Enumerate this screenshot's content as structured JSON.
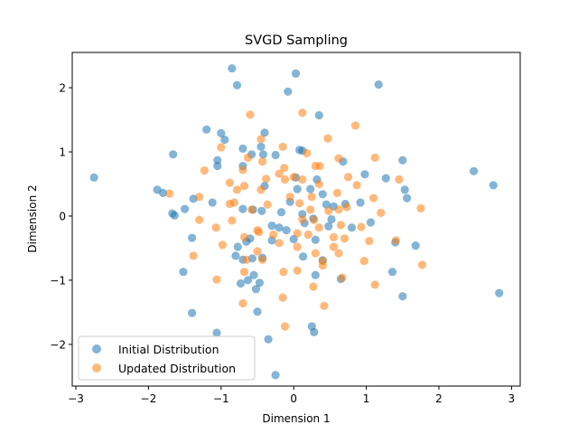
{
  "chart_data": {
    "type": "scatter",
    "title": "SVGD Sampling",
    "xlabel": "Dimension 1",
    "ylabel": "Dimension 2",
    "xlim": [
      -3.05,
      3.12
    ],
    "ylim": [
      -2.65,
      2.55
    ],
    "xticks": [
      -3,
      -2,
      -1,
      0,
      1,
      2,
      3
    ],
    "yticks": [
      -2,
      -1,
      0,
      1,
      2
    ],
    "xtick_labels": [
      "−3",
      "−2",
      "−1",
      "0",
      "1",
      "2",
      "3"
    ],
    "ytick_labels": [
      "−2",
      "−1",
      "0",
      "1",
      "2"
    ],
    "legend_position": "lower-left",
    "grid": false,
    "series": [
      {
        "name": "Initial Distribution",
        "color": "#1f77b4",
        "points": [
          [
            -0.85,
            2.3
          ],
          [
            -0.78,
            2.04
          ],
          [
            0.03,
            2.22
          ],
          [
            1.17,
            2.05
          ],
          [
            -0.08,
            1.94
          ],
          [
            -1.2,
            1.35
          ],
          [
            -1.0,
            1.29
          ],
          [
            -0.4,
            1.3
          ],
          [
            0.35,
            1.57
          ],
          [
            -0.95,
            1.19
          ],
          [
            -0.7,
            1.05
          ],
          [
            -0.45,
            1.08
          ],
          [
            0.08,
            1.03
          ],
          [
            0.12,
            1.02
          ],
          [
            -1.66,
            0.96
          ],
          [
            -0.58,
            0.96
          ],
          [
            -0.42,
            0.96
          ],
          [
            -0.25,
            0.95
          ],
          [
            0.68,
            0.85
          ],
          [
            1.5,
            0.87
          ],
          [
            -1.05,
            0.87
          ],
          [
            -1.05,
            0.78
          ],
          [
            -0.7,
            0.78
          ],
          [
            2.48,
            0.7
          ],
          [
            0.98,
            0.65
          ],
          [
            0.03,
            0.6
          ],
          [
            0.32,
            0.57
          ],
          [
            1.27,
            0.59
          ],
          [
            -1.88,
            0.41
          ],
          [
            -1.8,
            0.36
          ],
          [
            -0.4,
            0.47
          ],
          [
            0.05,
            0.42
          ],
          [
            0.23,
            0.42
          ],
          [
            0.4,
            0.34
          ],
          [
            2.75,
            0.48
          ],
          [
            1.53,
            0.41
          ],
          [
            -1.38,
            0.27
          ],
          [
            -1.12,
            0.21
          ],
          [
            -0.05,
            0.22
          ],
          [
            0.45,
            0.18
          ],
          [
            0.55,
            0.15
          ],
          [
            0.71,
            0.19
          ],
          [
            0.92,
            0.21
          ],
          [
            1.56,
            0.28
          ],
          [
            -1.67,
            0.04
          ],
          [
            -1.64,
            0.01
          ],
          [
            -1.5,
            0.11
          ],
          [
            -0.7,
            0.11
          ],
          [
            -0.56,
            0.1
          ],
          [
            -0.44,
            0.08
          ],
          [
            -0.17,
            0.06
          ],
          [
            0.12,
            0.03
          ],
          [
            0.27,
            -0.04
          ],
          [
            0.52,
            -0.05
          ],
          [
            -0.2,
            -0.18
          ],
          [
            -0.1,
            -0.22
          ],
          [
            -0.3,
            -0.15
          ],
          [
            0.15,
            -0.11
          ],
          [
            0.48,
            -0.16
          ],
          [
            0.8,
            -0.18
          ],
          [
            1.06,
            -0.1
          ],
          [
            1.4,
            -0.41
          ],
          [
            1.68,
            -0.46
          ],
          [
            -1.4,
            -0.34
          ],
          [
            -0.6,
            -0.35
          ],
          [
            -0.3,
            -0.38
          ],
          [
            0.0,
            -0.36
          ],
          [
            0.3,
            -0.37
          ],
          [
            -0.77,
            -0.48
          ],
          [
            -0.65,
            -0.4
          ],
          [
            -0.57,
            -0.66
          ],
          [
            -0.8,
            -0.62
          ],
          [
            -0.7,
            -0.68
          ],
          [
            -0.43,
            -0.65
          ],
          [
            0.13,
            -0.63
          ],
          [
            0.4,
            -0.69
          ],
          [
            -1.52,
            -0.87
          ],
          [
            -0.55,
            -0.92
          ],
          [
            0.3,
            -0.92
          ],
          [
            0.65,
            -0.98
          ],
          [
            1.36,
            -0.87
          ],
          [
            -0.73,
            -1.05
          ],
          [
            -0.63,
            -1.0
          ],
          [
            -0.47,
            -1.04
          ],
          [
            -0.52,
            -1.14
          ],
          [
            1.5,
            -1.25
          ],
          [
            2.83,
            -1.2
          ],
          [
            -1.4,
            -1.51
          ],
          [
            -0.5,
            -1.49
          ],
          [
            0.25,
            -1.72
          ],
          [
            0.28,
            -1.81
          ],
          [
            -1.06,
            -1.82
          ],
          [
            -0.35,
            -1.92
          ],
          [
            -0.25,
            -2.48
          ],
          [
            -2.75,
            0.6
          ]
        ]
      },
      {
        "name": "Updated Distribution",
        "color": "#ff7f0e",
        "points": [
          [
            -0.6,
            1.58
          ],
          [
            0.12,
            1.61
          ],
          [
            0.85,
            1.41
          ],
          [
            -0.45,
            1.2
          ],
          [
            0.47,
            1.21
          ],
          [
            -1.0,
            1.07
          ],
          [
            -0.15,
            1.08
          ],
          [
            -0.63,
            0.91
          ],
          [
            0.18,
            0.98
          ],
          [
            0.62,
            0.9
          ],
          [
            1.12,
            0.91
          ],
          [
            -0.43,
            0.85
          ],
          [
            0.3,
            0.78
          ],
          [
            0.36,
            0.78
          ],
          [
            -0.13,
            0.75
          ],
          [
            -1.23,
            0.71
          ],
          [
            -0.7,
            0.72
          ],
          [
            -0.2,
            0.66
          ],
          [
            0.0,
            0.61
          ],
          [
            0.75,
            0.61
          ],
          [
            1.45,
            0.57
          ],
          [
            -0.38,
            0.58
          ],
          [
            -0.12,
            0.57
          ],
          [
            0.12,
            0.57
          ],
          [
            -0.88,
            0.52
          ],
          [
            -0.68,
            0.47
          ],
          [
            0.35,
            0.5
          ],
          [
            0.87,
            0.48
          ],
          [
            -1.71,
            0.35
          ],
          [
            -0.05,
            0.3
          ],
          [
            0.25,
            0.3
          ],
          [
            0.6,
            0.36
          ],
          [
            1.1,
            0.28
          ],
          [
            -1.3,
            0.3
          ],
          [
            -0.78,
            0.41
          ],
          [
            -0.45,
            0.41
          ],
          [
            -0.36,
            0.18
          ],
          [
            0.23,
            0.1
          ],
          [
            0.48,
            0.08
          ],
          [
            0.73,
            0.14
          ],
          [
            0.08,
            0.2
          ],
          [
            -0.88,
            0.19
          ],
          [
            -0.82,
            0.21
          ],
          [
            -0.58,
            0.1
          ],
          [
            1.75,
            0.12
          ],
          [
            -1.3,
            -0.06
          ],
          [
            -0.85,
            -0.07
          ],
          [
            0.12,
            -0.05
          ],
          [
            0.28,
            -0.06
          ],
          [
            0.62,
            0.1
          ],
          [
            -0.5,
            -0.22
          ],
          [
            0.05,
            -0.27
          ],
          [
            0.35,
            -0.18
          ],
          [
            0.65,
            -0.14
          ],
          [
            0.93,
            -0.17
          ],
          [
            1.2,
            0.05
          ],
          [
            -1.07,
            -0.18
          ],
          [
            -0.48,
            -0.25
          ],
          [
            -0.28,
            -0.29
          ],
          [
            -0.68,
            -0.33
          ],
          [
            -0.5,
            -0.55
          ],
          [
            0.2,
            -0.29
          ],
          [
            0.55,
            -0.33
          ],
          [
            0.7,
            -0.35
          ],
          [
            1.04,
            -0.39
          ],
          [
            1.41,
            -0.38
          ],
          [
            -0.98,
            -0.45
          ],
          [
            -0.2,
            -0.42
          ],
          [
            0.05,
            -0.48
          ],
          [
            0.3,
            -0.58
          ],
          [
            0.55,
            -0.48
          ],
          [
            -1.38,
            -0.62
          ],
          [
            -0.65,
            -0.68
          ],
          [
            -0.43,
            -0.68
          ],
          [
            0.4,
            -0.7
          ],
          [
            0.62,
            -0.58
          ],
          [
            0.97,
            -0.7
          ],
          [
            1.77,
            -0.76
          ],
          [
            -0.68,
            -0.87
          ],
          [
            -0.14,
            -0.87
          ],
          [
            0.05,
            -0.85
          ],
          [
            0.4,
            -0.77
          ],
          [
            0.67,
            -0.96
          ],
          [
            -1.06,
            -0.99
          ],
          [
            0.27,
            -1.1
          ],
          [
            1.12,
            -1.07
          ],
          [
            -0.7,
            -1.36
          ],
          [
            -0.15,
            -1.27
          ],
          [
            0.42,
            -1.4
          ],
          [
            -0.12,
            -1.72
          ]
        ]
      }
    ]
  }
}
